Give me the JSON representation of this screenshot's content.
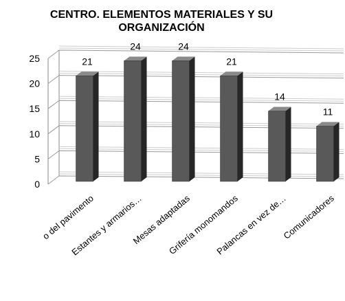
{
  "chart_data": {
    "type": "bar",
    "title": "CENTRO. ELEMENTOS MATERIALES Y SU ORGANIZACIÓN",
    "categories": [
      "o del pavimento",
      "Estantes y armarios…",
      "Mesas adaptadas",
      "Grifería monomandos",
      "Palancas en vez de…",
      "Comunicadores"
    ],
    "values": [
      21,
      24,
      24,
      21,
      14,
      11
    ],
    "color": "#595959",
    "ylim": [
      0,
      25
    ],
    "yticks": [
      0,
      5,
      10,
      15,
      20,
      25
    ],
    "grid": true
  }
}
